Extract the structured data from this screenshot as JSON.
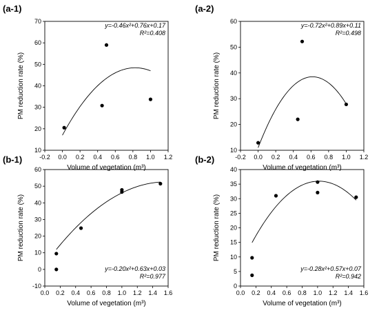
{
  "chart_data": [
    {
      "type": "scatter",
      "panel": "(a-1)",
      "xlabel": "Volume of vegetation (m³)",
      "ylabel": "PM reduction rate (%)",
      "xlim": [
        -0.2,
        1.2
      ],
      "ylim": [
        10,
        70
      ],
      "xticks": [
        "-0.2",
        "0.0",
        "0.2",
        "0.4",
        "0.6",
        "0.8",
        "1.0",
        "1.2"
      ],
      "yticks": [
        "10",
        "20",
        "30",
        "40",
        "50",
        "60",
        "70"
      ],
      "points": [
        {
          "x": 0.02,
          "y": 20.5
        },
        {
          "x": 0.45,
          "y": 30.8
        },
        {
          "x": 0.5,
          "y": 59.0
        },
        {
          "x": 1.0,
          "y": 33.7
        }
      ],
      "fit": {
        "a": -0.46,
        "b": 0.76,
        "c": 0.17,
        "xmin": 0.0,
        "xmax": 1.0,
        "scale": 100
      },
      "equation": "y=-0.46x²+0.76x+0.17",
      "r2": "R²=0.408",
      "legend_position": "top-right"
    },
    {
      "type": "scatter",
      "panel": "(a-2)",
      "xlabel": "Volume of vegetation (m³)",
      "ylabel": "PM reduction rate (%)",
      "xlim": [
        -0.2,
        1.2
      ],
      "ylim": [
        10,
        60
      ],
      "xticks": [
        "-0.2",
        "0.0",
        "0.2",
        "0.4",
        "0.6",
        "0.8",
        "1.0",
        "1.2"
      ],
      "yticks": [
        "10",
        "20",
        "30",
        "40",
        "50",
        "60"
      ],
      "points": [
        {
          "x": 0.0,
          "y": 12.9
        },
        {
          "x": 0.45,
          "y": 22.0
        },
        {
          "x": 0.5,
          "y": 52.2
        },
        {
          "x": 1.0,
          "y": 27.8
        }
      ],
      "fit": {
        "a": -0.72,
        "b": 0.89,
        "c": 0.11,
        "xmin": 0.0,
        "xmax": 1.0,
        "scale": 100
      },
      "equation": "y=-0.72x²+0.89x+0.11",
      "r2": "R²=0.498",
      "legend_position": "top-right"
    },
    {
      "type": "scatter",
      "panel": "(b-1)",
      "xlabel": "Volume of vegetation (m³)",
      "ylabel": "PM reduction rate (%)",
      "xlim": [
        0.0,
        1.6
      ],
      "ylim": [
        -10,
        60
      ],
      "xticks": [
        "0.0",
        "0.2",
        "0.4",
        "0.6",
        "0.8",
        "1.0",
        "1.2",
        "1.4",
        "1.6"
      ],
      "yticks": [
        "-10",
        "0",
        "10",
        "20",
        "30",
        "40",
        "50",
        "60"
      ],
      "points": [
        {
          "x": 0.15,
          "y": 9.5
        },
        {
          "x": 0.15,
          "y": 0.0
        },
        {
          "x": 0.47,
          "y": 24.8
        },
        {
          "x": 1.0,
          "y": 46.5
        },
        {
          "x": 1.0,
          "y": 47.8
        },
        {
          "x": 1.5,
          "y": 51.5
        }
      ],
      "fit": {
        "a": -0.2,
        "b": 0.63,
        "c": 0.03,
        "xmin": 0.15,
        "xmax": 1.5,
        "scale": 100
      },
      "equation": "y=-0.20x²+0.63x+0.03",
      "r2": "R²=0.977",
      "legend_position": "bottom-right"
    },
    {
      "type": "scatter",
      "panel": "(b-2)",
      "xlabel": "Volume of vegetation (m³)",
      "ylabel": "PM reduction rate (%)",
      "xlim": [
        0.0,
        1.6
      ],
      "ylim": [
        0,
        40
      ],
      "xticks": [
        "0.0",
        "0.2",
        "0.4",
        "0.6",
        "0.8",
        "1.0",
        "1.2",
        "1.4",
        "1.6"
      ],
      "yticks": [
        "0",
        "5",
        "10",
        "15",
        "20",
        "25",
        "30",
        "35",
        "40"
      ],
      "points": [
        {
          "x": 0.15,
          "y": 9.7
        },
        {
          "x": 0.15,
          "y": 3.7
        },
        {
          "x": 0.46,
          "y": 31.0
        },
        {
          "x": 1.0,
          "y": 35.7
        },
        {
          "x": 1.0,
          "y": 32.1
        },
        {
          "x": 1.5,
          "y": 30.5
        }
      ],
      "fit": {
        "a": -0.28,
        "b": 0.57,
        "c": 0.07,
        "xmin": 0.15,
        "xmax": 1.5,
        "scale": 100
      },
      "equation": "y=-0.28x²+0.57x+0.07",
      "r2": "R²=0.942",
      "legend_position": "bottom-right"
    }
  ]
}
